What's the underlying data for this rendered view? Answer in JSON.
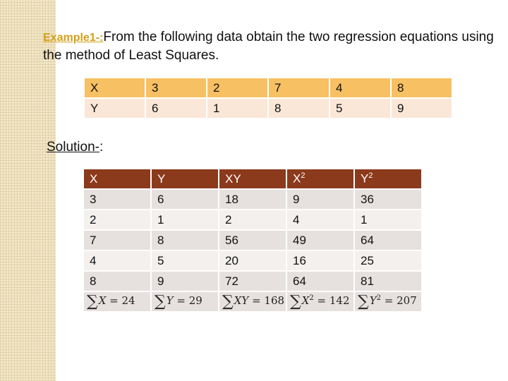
{
  "heading": {
    "example_label": "Example1-:",
    "text": "From the following data obtain the two regression equations using the method of Least Squares."
  },
  "data_table": {
    "rows": [
      {
        "label": "X",
        "values": [
          "3",
          "2",
          "7",
          "4",
          "8"
        ]
      },
      {
        "label": "Y",
        "values": [
          "6",
          "1",
          "8",
          "5",
          "9"
        ]
      }
    ]
  },
  "solution_label": "Solution-",
  "solution_colon": ":",
  "calc_table": {
    "headers": [
      "X",
      "Y",
      "XY",
      "X",
      "Y"
    ],
    "header_sup": [
      "",
      "",
      "",
      "2",
      "2"
    ],
    "rows": [
      [
        "3",
        "6",
        "18",
        "9",
        "36"
      ],
      [
        "2",
        "1",
        "2",
        "4",
        "1"
      ],
      [
        "7",
        "8",
        "56",
        "49",
        "64"
      ],
      [
        "4",
        "5",
        "20",
        "16",
        "25"
      ],
      [
        "8",
        "9",
        "72",
        "64",
        "81"
      ]
    ],
    "sums": [
      {
        "symbol": "∑",
        "var": "X",
        "sup": "",
        "eq": " = 24"
      },
      {
        "symbol": "∑",
        "var": "Y",
        "sup": "",
        "eq": " = 29"
      },
      {
        "symbol": "∑",
        "var": "XY",
        "sup": "",
        "eq": " = 168"
      },
      {
        "symbol": "∑",
        "var": "X",
        "sup": "2",
        "eq": " = 142"
      },
      {
        "symbol": "∑",
        "var": "Y",
        "sup": "2",
        "eq": " = 207"
      }
    ]
  }
}
